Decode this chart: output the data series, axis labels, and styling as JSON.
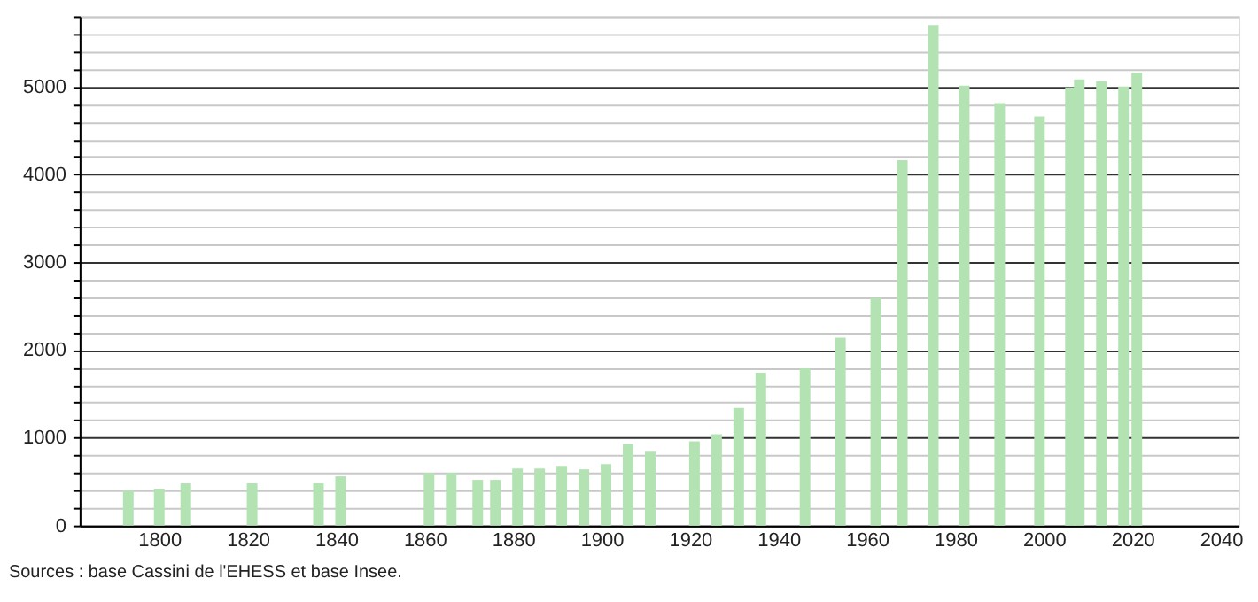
{
  "chart_data": {
    "type": "bar",
    "x": [
      1793,
      1800,
      1806,
      1821,
      1836,
      1841,
      1861,
      1866,
      1872,
      1876,
      1881,
      1886,
      1891,
      1896,
      1901,
      1906,
      1911,
      1921,
      1926,
      1931,
      1936,
      1946,
      1954,
      1962,
      1968,
      1975,
      1982,
      1990,
      1999,
      2006,
      2008,
      2013,
      2018,
      2021
    ],
    "values": [
      400,
      420,
      480,
      480,
      480,
      560,
      600,
      600,
      520,
      520,
      650,
      650,
      680,
      640,
      700,
      930,
      840,
      960,
      1040,
      1340,
      1740,
      1790,
      2140,
      2590,
      4160,
      5700,
      5010,
      4810,
      4660,
      4990,
      5080,
      5060,
      5000,
      5160
    ],
    "color": "#b3e3b3",
    "xlim": [
      1784,
      2042
    ],
    "xticks": [
      1800,
      1820,
      1840,
      1860,
      1880,
      1900,
      1920,
      1940,
      1960,
      1980,
      2000,
      2020,
      2040
    ],
    "ylim": [
      0,
      5800
    ],
    "yticks": [
      0,
      {
        "value": 200,
        "label": null
      },
      {
        "value": 400,
        "label": null
      },
      {
        "value": 600,
        "label": null
      },
      {
        "value": 800,
        "label": null
      },
      1000,
      {
        "value": 1200,
        "label": null
      },
      {
        "value": 1400,
        "label": null
      },
      {
        "value": 1600,
        "label": null
      },
      {
        "value": 1800,
        "label": null
      },
      2000,
      {
        "value": 2200,
        "label": null
      },
      {
        "value": 2400,
        "label": null
      },
      {
        "value": 2600,
        "label": null
      },
      {
        "value": 2800,
        "label": null
      },
      3000,
      {
        "value": 3200,
        "label": null
      },
      {
        "value": 3400,
        "label": null
      },
      {
        "value": 3600,
        "label": null
      },
      {
        "value": 3800,
        "label": null
      },
      4000,
      {
        "value": 4200,
        "label": null
      },
      {
        "value": 4400,
        "label": null
      },
      {
        "value": 4600,
        "label": null
      },
      {
        "value": 4800,
        "label": null
      },
      5000,
      {
        "value": 5200,
        "label": null
      },
      {
        "value": 5400,
        "label": null
      },
      {
        "value": 5600,
        "label": null
      },
      {
        "value": 5800,
        "label": null
      }
    ],
    "grid": "y",
    "annotations": [
      "Sources : base Cassini de l'EHESS et base Insee."
    ]
  }
}
